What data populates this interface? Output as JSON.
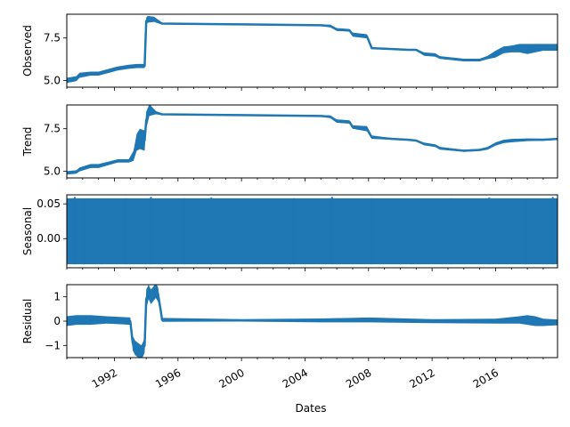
{
  "chart_data": [
    {
      "type": "line",
      "ylabel": "Observed",
      "xlim": [
        1989.0,
        2019.9
      ],
      "ylim": [
        4.6,
        8.9
      ],
      "yticks": [
        5.0,
        7.5
      ],
      "ytick_labels": [
        "5.0",
        "7.5"
      ],
      "color": "#1f77b4",
      "x": [
        1989.0,
        1989.6,
        1989.8,
        1990.5,
        1991.0,
        1991.8,
        1992.2,
        1992.9,
        1993.4,
        1993.9,
        1994.0,
        1994.1,
        1994.5,
        1994.9,
        1995.0,
        2000.0,
        2005.0,
        2005.6,
        2006.0,
        2006.8,
        2007.0,
        2007.9,
        2008.2,
        2009.5,
        2010.5,
        2011.0,
        2011.5,
        2012.2,
        2012.5,
        2013.5,
        2014.0,
        2015.0,
        2015.5,
        2016.0,
        2016.5,
        2017.0,
        2017.5,
        2018.0,
        2018.5,
        2019.0,
        2019.9
      ],
      "values": [
        5.0,
        5.1,
        5.3,
        5.4,
        5.4,
        5.6,
        5.7,
        5.8,
        5.85,
        5.85,
        8.5,
        8.6,
        8.6,
        8.4,
        8.35,
        8.3,
        8.25,
        8.2,
        8.0,
        7.95,
        7.7,
        7.6,
        6.9,
        6.85,
        6.8,
        6.8,
        6.55,
        6.5,
        6.35,
        6.25,
        6.2,
        6.2,
        6.35,
        6.55,
        6.8,
        6.85,
        6.9,
        6.85,
        6.9,
        6.95,
        6.95
      ],
      "band": [
        0.15,
        0.15,
        0.15,
        0.12,
        0.12,
        0.12,
        0.12,
        0.12,
        0.12,
        0.12,
        0.2,
        0.2,
        0.15,
        0.08,
        0.05,
        0.04,
        0.05,
        0.08,
        0.08,
        0.08,
        0.12,
        0.12,
        0.05,
        0.05,
        0.05,
        0.05,
        0.1,
        0.1,
        0.08,
        0.08,
        0.08,
        0.08,
        0.1,
        0.2,
        0.2,
        0.2,
        0.25,
        0.3,
        0.25,
        0.2,
        0.2
      ]
    },
    {
      "type": "line",
      "ylabel": "Trend",
      "xlim": [
        1989.0,
        2019.9
      ],
      "ylim": [
        4.6,
        8.9
      ],
      "yticks": [
        5.0,
        7.5
      ],
      "ytick_labels": [
        "5.0",
        "7.5"
      ],
      "color": "#1f77b4",
      "x": [
        1989.0,
        1989.6,
        1989.8,
        1990.5,
        1991.0,
        1991.8,
        1992.2,
        1992.9,
        1993.2,
        1993.4,
        1993.6,
        1993.9,
        1994.0,
        1994.2,
        1994.6,
        1995.0,
        2000.0,
        2005.0,
        2005.6,
        2006.0,
        2006.8,
        2007.0,
        2007.9,
        2008.2,
        2009.5,
        2010.5,
        2011.0,
        2011.5,
        2012.2,
        2012.5,
        2013.5,
        2014.0,
        2015.0,
        2015.5,
        2016.0,
        2016.5,
        2017.0,
        2018.0,
        2019.0,
        2019.9
      ],
      "values": [
        4.9,
        4.95,
        5.1,
        5.3,
        5.3,
        5.5,
        5.6,
        5.6,
        5.9,
        6.7,
        6.9,
        6.8,
        8.0,
        8.6,
        8.45,
        8.35,
        8.3,
        8.25,
        8.2,
        7.95,
        7.9,
        7.6,
        7.5,
        7.0,
        6.9,
        6.85,
        6.8,
        6.6,
        6.5,
        6.35,
        6.25,
        6.2,
        6.25,
        6.35,
        6.6,
        6.75,
        6.8,
        6.85,
        6.85,
        6.9
      ],
      "band": [
        0.1,
        0.1,
        0.12,
        0.12,
        0.12,
        0.1,
        0.1,
        0.1,
        0.3,
        0.5,
        0.6,
        0.6,
        0.5,
        0.35,
        0.1,
        0.05,
        0.03,
        0.05,
        0.08,
        0.1,
        0.1,
        0.1,
        0.15,
        0.1,
        0.05,
        0.05,
        0.05,
        0.08,
        0.08,
        0.08,
        0.06,
        0.06,
        0.06,
        0.08,
        0.1,
        0.1,
        0.1,
        0.08,
        0.06,
        0.05
      ]
    },
    {
      "type": "area",
      "ylabel": "Seasonal",
      "xlim": [
        1989.0,
        2019.9
      ],
      "ylim": [
        -0.042,
        0.063
      ],
      "yticks": [
        0.0,
        0.05
      ],
      "ytick_labels": [
        "0.00",
        "0.05"
      ],
      "color": "#1f77b4",
      "x": [
        1989.0,
        2019.9
      ],
      "upper": [
        0.058,
        0.058
      ],
      "lower": [
        -0.037,
        -0.037
      ],
      "spikes_x": [
        1989.5,
        1990.1,
        1991.2,
        1992.7,
        1994.3,
        1996.4,
        1998.1,
        2000.8,
        2003.3,
        2005.7,
        2008.2,
        2010.7,
        2013.2,
        2015.6,
        2017.9,
        2019.2,
        2019.6
      ],
      "spikes_y": [
        0.06,
        0.055,
        0.057,
        0.058,
        0.06,
        0.058,
        0.059,
        0.057,
        0.058,
        0.06,
        0.058,
        0.057,
        0.058,
        0.059,
        0.057,
        0.055,
        0.06
      ]
    },
    {
      "type": "line",
      "ylabel": "Residual",
      "xlim": [
        1989.0,
        2019.9
      ],
      "ylim": [
        -1.5,
        1.5
      ],
      "yticks": [
        1,
        0,
        -1
      ],
      "ytick_labels": [
        "1",
        "0",
        "−1"
      ],
      "color": "#1f77b4",
      "x": [
        1989.0,
        1989.6,
        1990.5,
        1991.5,
        1992.5,
        1993.0,
        1993.15,
        1993.3,
        1993.5,
        1993.7,
        1993.9,
        1994.0,
        1994.15,
        1994.3,
        1994.6,
        1994.75,
        1994.9,
        1995.0,
        2000.0,
        2005.0,
        2008.0,
        2012.0,
        2016.0,
        2017.5,
        2018.0,
        2018.5,
        2019.0,
        2019.9
      ],
      "values": [
        0.0,
        0.05,
        0.05,
        0.05,
        0.02,
        0.0,
        -0.9,
        -1.1,
        -1.2,
        -1.3,
        -1.0,
        0.9,
        1.2,
        1.0,
        1.25,
        1.1,
        0.5,
        0.05,
        0.03,
        0.03,
        0.05,
        0.0,
        0.0,
        0.05,
        0.05,
        0.0,
        -0.05,
        -0.05
      ],
      "band": [
        0.2,
        0.2,
        0.2,
        0.15,
        0.15,
        0.15,
        0.3,
        0.3,
        0.3,
        0.3,
        0.3,
        0.4,
        0.3,
        0.3,
        0.3,
        0.3,
        0.2,
        0.08,
        0.05,
        0.08,
        0.1,
        0.08,
        0.1,
        0.15,
        0.2,
        0.2,
        0.15,
        0.12
      ],
      "xlabel": "Dates",
      "xticks": [
        1992,
        1996,
        2000,
        2004,
        2008,
        2012,
        2016
      ],
      "xtick_labels": [
        "1992",
        "1996",
        "2000",
        "2004",
        "2008",
        "2012",
        "2016"
      ]
    }
  ]
}
